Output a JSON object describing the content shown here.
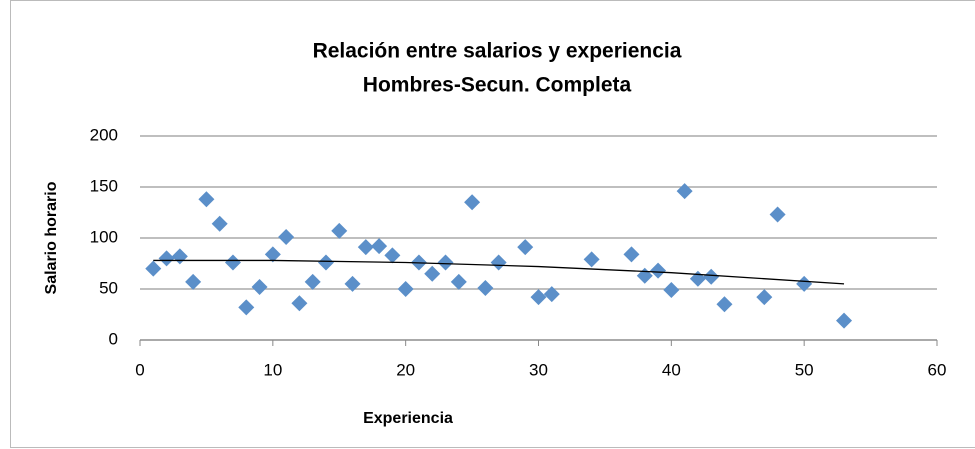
{
  "chart_data": {
    "type": "scatter",
    "title": "Relación entre salarios y experiencia",
    "subtitle": "Hombres-Secun. Completa",
    "x_label": "Experiencia",
    "y_label": "Salario horario",
    "color": "#5b8fc9",
    "trend_color": "#000000",
    "grid": true,
    "xlim": [
      0,
      60
    ],
    "xticks": [
      0,
      10,
      20,
      30,
      40,
      50,
      60
    ],
    "ylim": [
      0,
      200
    ],
    "yticks": [
      0,
      50,
      100,
      150,
      200
    ],
    "x": [
      1,
      2,
      3,
      4,
      5,
      6,
      7,
      8,
      9,
      10,
      11,
      12,
      13,
      14,
      15,
      16,
      17,
      18,
      19,
      20,
      21,
      22,
      23,
      24,
      25,
      26,
      27,
      29,
      30,
      31,
      34,
      37,
      38,
      39,
      40,
      41,
      42,
      43,
      44,
      47,
      48,
      50,
      53
    ],
    "values": [
      70,
      80,
      82,
      57,
      138,
      114,
      76,
      32,
      52,
      84,
      101,
      36,
      57,
      76,
      107,
      55,
      91,
      92,
      83,
      50,
      76,
      65,
      76,
      57,
      135,
      51,
      76,
      91,
      42,
      45,
      79,
      84,
      63,
      68,
      49,
      146,
      60,
      62,
      35,
      42,
      123,
      55,
      19
    ],
    "trendline": {
      "x": [
        1,
        10,
        20,
        30,
        40,
        53
      ],
      "values": [
        78,
        78,
        76,
        72,
        66,
        55
      ]
    }
  }
}
